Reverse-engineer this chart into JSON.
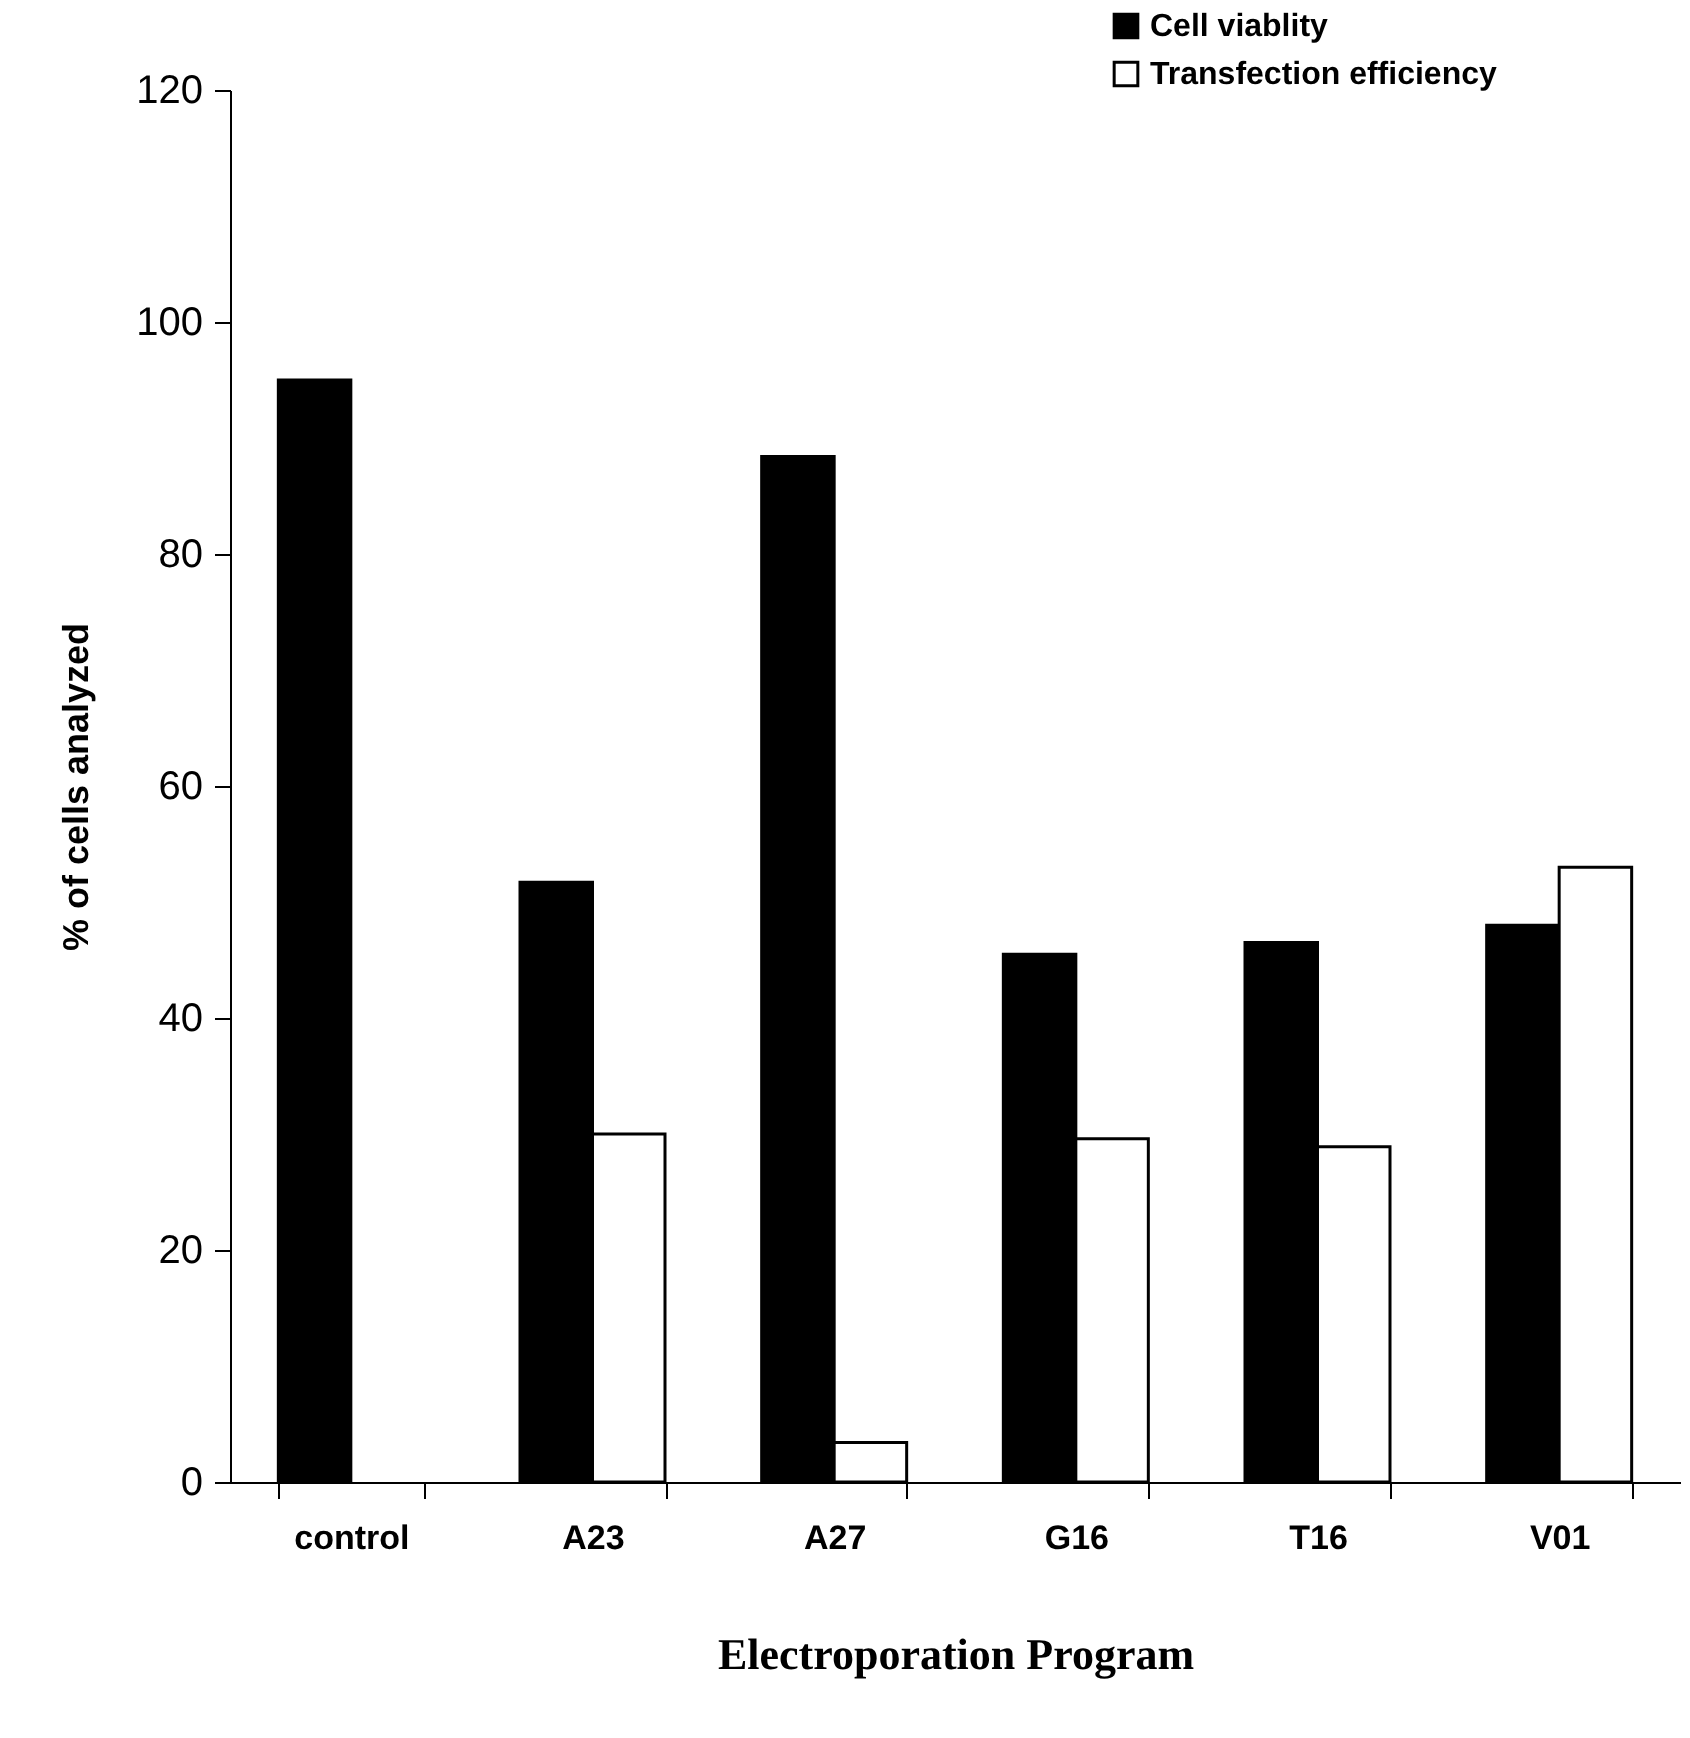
{
  "chart_data": {
    "type": "bar",
    "xlabel": "Electroporation Program",
    "ylabel": "% of cells analyzed",
    "categories": [
      "control",
      "A23",
      "A27",
      "G16",
      "T16",
      "V01"
    ],
    "series": [
      {
        "name": "Cell viablity",
        "color": "#000000",
        "values": [
          95,
          51.7,
          88.4,
          45.5,
          46.5,
          48.0
        ]
      },
      {
        "name": "Transfection efficiency",
        "color": "#ffffff",
        "values": [
          null,
          30.0,
          3.4,
          29.6,
          28.9,
          53.0
        ]
      }
    ],
    "ylim": [
      0,
      120
    ],
    "yticks": [
      0,
      20,
      40,
      60,
      80,
      100,
      120
    ],
    "grid": false,
    "legend": "top right"
  }
}
